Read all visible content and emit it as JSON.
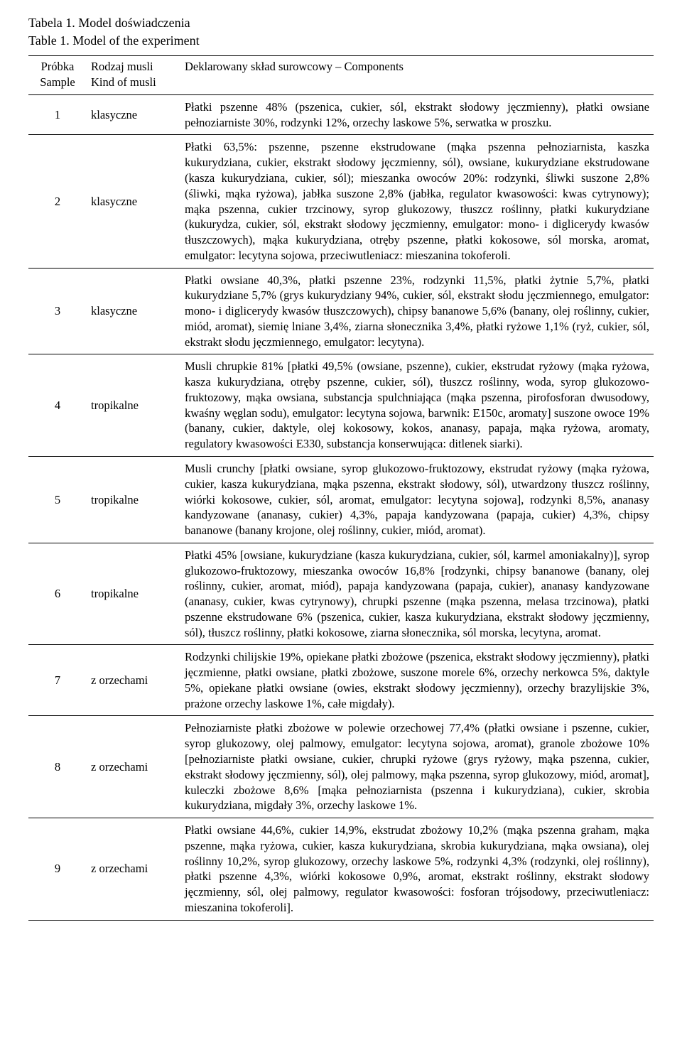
{
  "caption": {
    "line1": "Tabela 1. Model doświadczenia",
    "line2": "Table 1.  Model of the experiment"
  },
  "header": {
    "sample_pl": "Próbka",
    "sample_en": "Sample",
    "kind_pl": "Rodzaj musli",
    "kind_en": "Kind of musli",
    "components": "Deklarowany skład surowcowy – Components"
  },
  "rows": [
    {
      "n": "1",
      "kind": "klasyczne",
      "text": "Płatki pszenne 48% (pszenica, cukier, sól, ekstrakt słodowy jęczmienny), płatki owsiane pełnoziarniste 30%, rodzynki 12%, orzechy laskowe 5%, serwatka w proszku."
    },
    {
      "n": "2",
      "kind": "klasyczne",
      "text": "Płatki 63,5%: pszenne, pszenne ekstrudowane (mąka pszenna pełnoziarnista, kaszka kukurydziana, cukier, ekstrakt słodowy jęczmienny, sól), owsiane, kukurydziane ekstrudowane (kasza kukurydziana, cukier, sól); mieszanka owoców 20%: rodzynki, śliwki suszone 2,8% (śliwki, mąka ryżowa), jabłka suszone 2,8% (jabłka, regulator kwasowości: kwas cytrynowy); mąka pszenna, cukier trzcinowy, syrop glukozowy, tłuszcz roślinny, płatki kukurydziane (kukurydza, cukier, sól, ekstrakt słodowy jęczmienny, emulgator: mono- i diglicerydy kwasów tłuszczowych), mąka kukurydziana, otręby pszenne, płatki kokosowe, sól morska, aromat, emulgator: lecytyna sojowa, przeciwutleniacz: mieszanina tokoferoli."
    },
    {
      "n": "3",
      "kind": "klasyczne",
      "text": "Płatki owsiane 40,3%, płatki pszenne 23%, rodzynki 11,5%, płatki żytnie 5,7%, płatki kukurydziane 5,7% (grys kukurydziany 94%, cukier, sól, ekstrakt słodu jęczmiennego, emulgator: mono- i diglicerydy kwasów tłuszczowych), chipsy bananowe 5,6% (banany, olej roślinny, cukier, miód, aromat), siemię lniane 3,4%, ziarna słonecznika 3,4%, płatki ryżowe 1,1% (ryż, cukier, sól, ekstrakt słodu jęczmiennego, emulgator: lecytyna)."
    },
    {
      "n": "4",
      "kind": "tropikalne",
      "text": "Musli chrupkie 81% [płatki 49,5% (owsiane, pszenne), cukier, ekstrudat ryżowy (mąka ryżowa, kasza kukurydziana, otręby pszenne, cukier, sól), tłuszcz roślinny, woda, syrop glukozowo-fruktozowy, mąka owsiana, substancja spulchniająca (mąka pszenna, pirofosforan dwusodowy, kwaśny węglan sodu), emulgator: lecytyna sojowa, barwnik: E150c, aromaty] suszone owoce 19% (banany, cukier, daktyle, olej kokosowy, kokos, ananasy, papaja, mąka ryżowa, aromaty, regulatory kwasowości E330, substancja konserwująca: ditlenek siarki)."
    },
    {
      "n": "5",
      "kind": "tropikalne",
      "text": "Musli crunchy [płatki owsiane, syrop glukozowo-fruktozowy, ekstrudat ryżowy (mąka ryżowa, cukier, kasza kukurydziana, mąka pszenna, ekstrakt słodowy, sól), utwardzony tłuszcz roślinny, wiórki kokosowe, cukier, sól, aromat, emulgator: lecytyna sojowa], rodzynki 8,5%, ananasy kandyzowane (ananasy, cukier) 4,3%, papaja kandyzowana (papaja, cukier) 4,3%, chipsy bananowe (banany krojone, olej roślinny, cukier, miód, aromat)."
    },
    {
      "n": "6",
      "kind": "tropikalne",
      "text": "Płatki 45% [owsiane, kukurydziane (kasza kukurydziana, cukier, sól, karmel amoniakalny)], syrop glukozowo-fruktozowy, mieszanka owoców 16,8% [rodzynki, chipsy bananowe (banany, olej roślinny, cukier, aromat, miód), papaja kandyzowana (papaja, cukier), ananasy kandyzowane (ananasy, cukier, kwas cytrynowy), chrupki pszenne (mąka pszenna, melasa trzcinowa), płatki pszenne ekstrudowane 6% (pszenica, cukier, kasza kukurydziana, ekstrakt słodowy jęczmienny, sól), tłuszcz roślinny, płatki kokosowe, ziarna słonecznika, sól morska, lecytyna, aromat."
    },
    {
      "n": "7",
      "kind": "z orzechami",
      "text": "Rodzynki chilijskie 19%, opiekane płatki zbożowe (pszenica, ekstrakt słodowy jęczmienny), płatki jęczmienne, płatki owsiane, płatki zbożowe, suszone morele 6%, orzechy nerkowca 5%, daktyle 5%, opiekane płatki owsiane (owies, ekstrakt słodowy jęczmienny), orzechy brazylijskie 3%, prażone orzechy laskowe 1%, całe migdały)."
    },
    {
      "n": "8",
      "kind": "z orzechami",
      "text": "Pełnoziarniste płatki zbożowe w polewie orzechowej 77,4% (płatki owsiane i pszenne, cukier, syrop glukozowy, olej palmowy, emulgator: lecytyna sojowa, aromat), granole zbożowe 10% [pełnoziarniste płatki owsiane, cukier, chrupki ryżowe (grys ryżowy, mąka pszenna, cukier, ekstrakt słodowy jęczmienny, sól), olej palmowy, mąka pszenna, syrop glukozowy, miód, aromat], kuleczki zbożowe 8,6% [mąka pełnoziarnista (pszenna i kukurydziana), cukier, skrobia kukurydziana, migdały 3%, orzechy laskowe 1%."
    },
    {
      "n": "9",
      "kind": "z orzechami",
      "text": "Płatki owsiane 44,6%, cukier 14,9%, ekstrudat zbożowy 10,2% (mąka pszenna graham, mąka pszenne, mąka ryżowa, cukier, kasza kukurydziana, skrobia kukurydziana, mąka owsiana), olej roślinny 10,2%, syrop glukozowy, orzechy laskowe 5%, rodzynki 4,3% (rodzynki, olej roślinny), płatki pszenne 4,3%, wiórki kokosowe 0,9%, aromat, ekstrakt roślinny, ekstrakt słodowy jęczmienny, sól, olej palmowy, regulator kwasowości: fosforan trójsodowy, przeciwutleniacz: mieszanina tokoferoli]."
    }
  ]
}
